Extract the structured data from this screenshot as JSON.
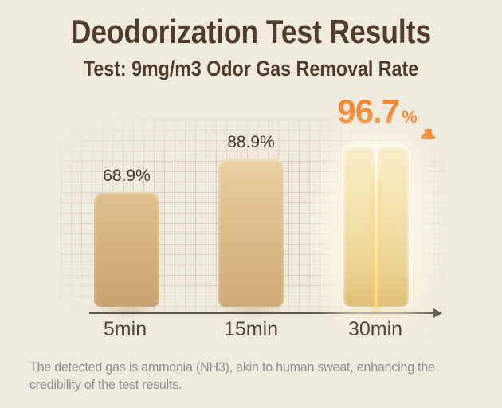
{
  "header": {
    "title": "Deodorization Test Results",
    "subtitle": "Test: 9mg/m3 Odor Gas Removal Rate"
  },
  "chart_data": {
    "type": "bar",
    "categories": [
      "5min",
      "15min",
      "30min"
    ],
    "values": [
      68.9,
      88.9,
      96.7
    ],
    "unit": "%",
    "bar_labels": [
      "68.9%",
      "88.9%"
    ],
    "highlight": {
      "category": "30min",
      "value_text": "96.7",
      "unit_text": "%",
      "arrow_icon": "arrow-up",
      "accent_color": "#f6862e"
    },
    "title": "Deodorization Test Results",
    "subtitle": "Test: 9mg/m3 Odor Gas Removal Rate",
    "xlabel": "",
    "ylabel": "",
    "ylim": [
      0,
      100
    ],
    "grid": true,
    "legend": false,
    "axis_arrow": true
  },
  "footer": {
    "line1": "The detected gas is ammonia (NH3), akin to human sweat, enhancing the",
    "line2": "credibility of the test results."
  },
  "colors": {
    "background": "#f1ece1",
    "title_brown": "#4b3828",
    "value_label": "#3d332a",
    "accent_orange": "#f6862e",
    "bar_gold": "#d4af79",
    "bar_gold_light": "#f4e3ab",
    "axis": "#57524a",
    "footer_gray": "#8f8e88"
  }
}
